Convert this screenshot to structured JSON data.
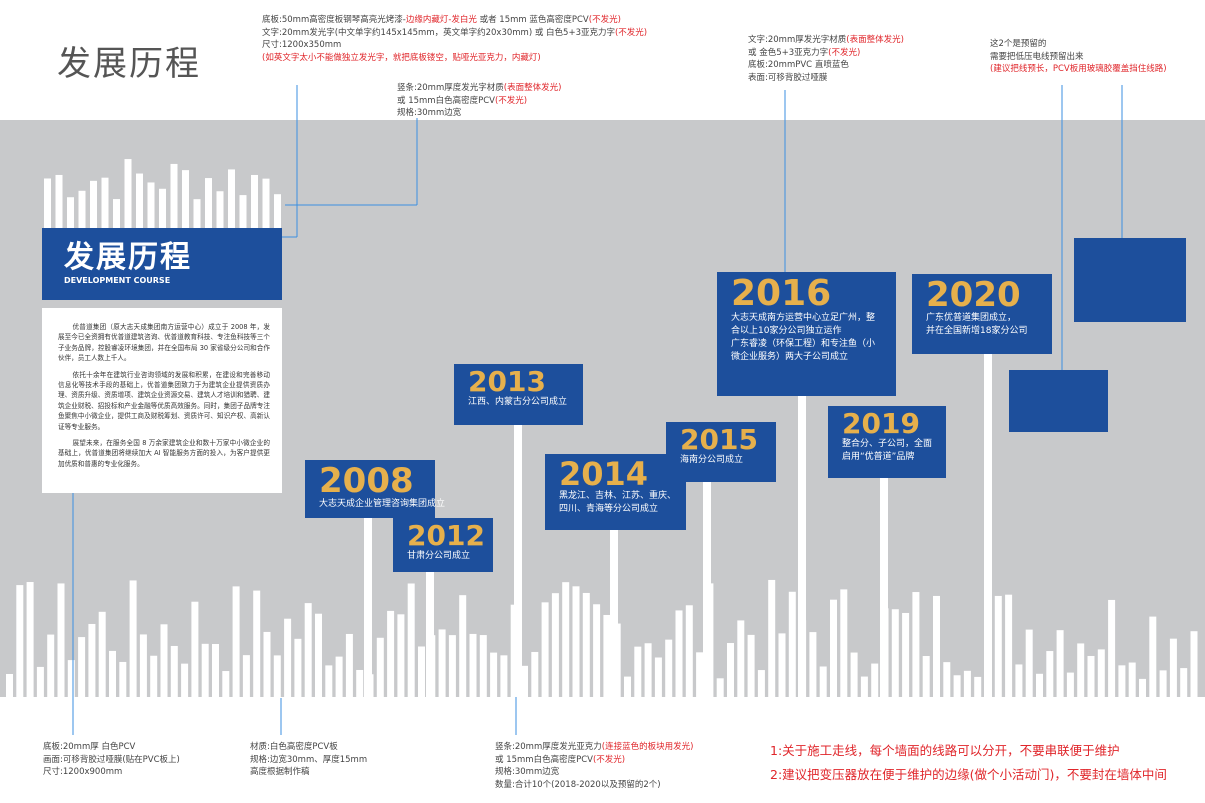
{
  "title": "发展历程",
  "spec_notes_top": [
    {
      "lines": [
        [
          {
            "text": "底板:50mm高密度板钢琴高亮光烤漆-"
          },
          {
            "text": "边缘内藏灯-发白光",
            "highlight": true
          },
          {
            "text": " 或者  15mm 蓝色高密度PCV"
          },
          {
            "text": "(不发光)",
            "highlight": true
          }
        ],
        [
          {
            "text": "文字:20mm发光字(中文单字约145x145mm，英文单字约20x30mm)  或 白色5+3亚克力字"
          },
          {
            "text": "(不发光)",
            "highlight": true
          }
        ],
        [
          {
            "text": "尺寸:1200x350mm"
          }
        ],
        [
          {
            "text": "(如英文字太小不能做独立发光字，就把底板镂空，贴哑光亚克力，内藏灯)",
            "highlight": true
          }
        ]
      ]
    },
    {
      "lines": [
        [
          {
            "text": "竖条:20mm厚度发光字材质"
          },
          {
            "text": "(表面整体发光)",
            "highlight": true
          }
        ],
        [
          {
            "text": "或  15mm白色高密度PCV"
          },
          {
            "text": "(不发光)",
            "highlight": true
          }
        ],
        [
          {
            "text": "规格:30mm边宽"
          }
        ]
      ]
    },
    {
      "lines": [
        [
          {
            "text": "文字:20mm厚发光字材质"
          },
          {
            "text": "(表面整体发光)",
            "highlight": true
          }
        ],
        [
          {
            "text": "或 金色5+3亚克力字"
          },
          {
            "text": "(不发光)",
            "highlight": true
          }
        ],
        [
          {
            "text": "底板:20mmPVC 直喷蓝色"
          }
        ],
        [
          {
            "text": "表面:可移背胶过哑膜"
          }
        ]
      ]
    },
    {
      "lines": [
        [
          {
            "text": "这2个是预留的"
          }
        ],
        [
          {
            "text": "需要把低压电线预留出来"
          }
        ],
        [
          {
            "text": "(建议把线预长，PCV板用玻璃胶覆盖挡住线路)",
            "highlight": true
          }
        ]
      ]
    }
  ],
  "spec_notes_bottom": [
    {
      "lines": [
        [
          {
            "text": "底板:20mm厚  白色PCV"
          }
        ],
        [
          {
            "text": "画面:可移背胶过哑膜(贴在PVC板上)"
          }
        ],
        [
          {
            "text": "尺寸:1200x900mm"
          }
        ]
      ]
    },
    {
      "lines": [
        [
          {
            "text": "材质:白色高密度PCV板"
          }
        ],
        [
          {
            "text": "规格:边宽30mm、厚度15mm"
          }
        ],
        [
          {
            "text": "        高度根据制作稿"
          }
        ]
      ]
    },
    {
      "lines": [
        [
          {
            "text": "竖条:20mm厚度发光亚克力"
          },
          {
            "text": "(连接蓝色的板块用发光)",
            "highlight": true
          }
        ],
        [
          {
            "text": "或  15mm白色高密度PCV"
          },
          {
            "text": "(不发光)",
            "highlight": true
          }
        ],
        [
          {
            "text": "规格:30mm边宽"
          }
        ],
        [
          {
            "text": "数量:合计10个(2018-2020以及预留的2个)"
          }
        ]
      ]
    }
  ],
  "intro_panel": {
    "title": "发展历程",
    "subtitle": "DEVELOPMENT COURSE",
    "paragraphs": [
      "优普道集团（原大志天成集团南方运营中心）成立于 2008 年，发展至今已全资拥有优普道建筑咨询、优普道教育科技、专注鱼科技等三个子业务品牌，控股睿凌环境集团，并在全国布局 30 家省级分公司和合作伙伴，员工人数上千人。",
      "依托十余年在建筑行业咨询领域的发展和积累，在建设和完善移动信息化等技术手段的基础上，优普道集团致力于为建筑企业提供资质办理、资质升级、资质增项、建筑企业资源交易、建筑人才培训和猎聘、建筑企业财税、招投标和产业金融等优质高效服务。同时，集团子品牌专注鱼聚焦中小微企业，提供工商及财税筹划、资质许可、知识产权、高新认证等专业服务。",
      "展望未来，在服务全国 8 万余家建筑企业和数十万家中小微企业的基础上，优普道集团将继续加大 AI 智能服务方面的投入，为客户提供更加优质和普惠的专业化服务。"
    ]
  },
  "milestones": [
    {
      "year": "2008",
      "lines": [
        "大志天成企业管理咨询集团成立"
      ]
    },
    {
      "year": "2012",
      "lines": [
        "甘肃分公司成立"
      ]
    },
    {
      "year": "2013",
      "lines": [
        "江西、内蒙古分公司成立"
      ]
    },
    {
      "year": "2014",
      "lines": [
        "黑龙江、吉林、江苏、重庆、",
        "四川、青海等分公司成立"
      ]
    },
    {
      "year": "2015",
      "lines": [
        "海南分公司成立"
      ]
    },
    {
      "year": "2016",
      "lines": [
        "大志天成南方运营中心立足广州，整",
        "合以上10家分公司独立运作",
        "广东睿凌（环保工程）和专注鱼（小",
        "微企业服务）两大子公司成立"
      ]
    },
    {
      "year": "2019",
      "lines": [
        "整合分、子公司，全面",
        "启用“优普道”品牌"
      ]
    },
    {
      "year": "2020",
      "lines": [
        "广东优普道集团成立，",
        "并在全国新增18家分公司"
      ]
    }
  ],
  "construction_notes": [
    "1:关于施工走线，每个墙面的线路可以分开，不要串联便于维护",
    "2:建议把变压器放在便于维护的边缘(做个小活动门)，不要封在墙体中间"
  ]
}
